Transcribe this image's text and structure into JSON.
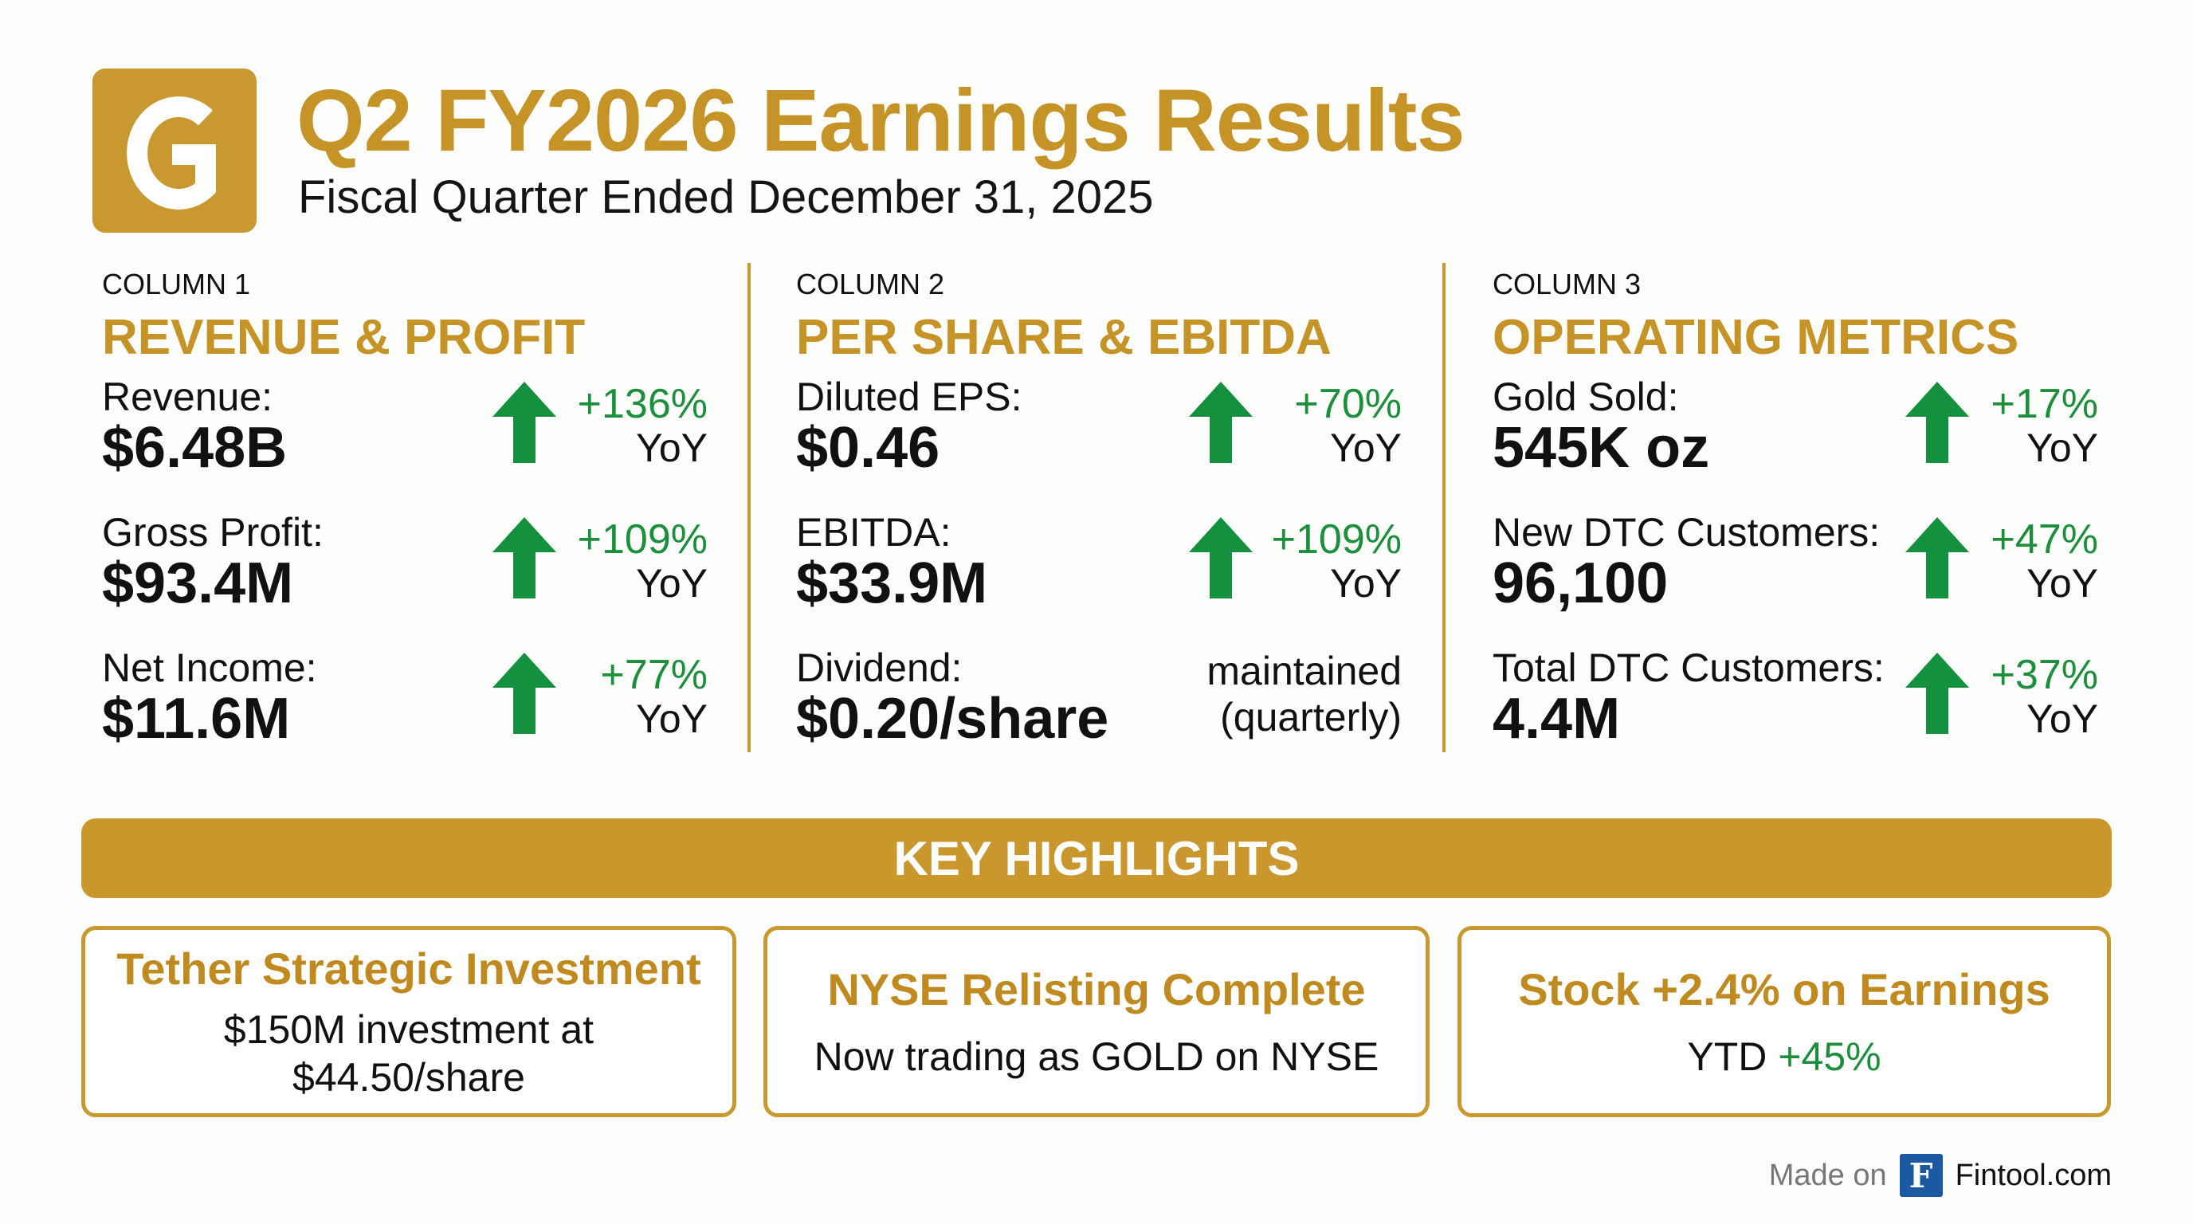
{
  "header": {
    "logo_letter": "G",
    "title": "Q2 FY2026 Earnings Results",
    "subtitle": "Fiscal Quarter Ended December 31, 2025"
  },
  "columns": [
    {
      "kicker": "COLUMN 1",
      "heading": "REVENUE & PROFIT",
      "metrics": [
        {
          "label": "Revenue:",
          "value": "$6.48B",
          "change": "+136%",
          "period": "YoY",
          "icon": "arrow-up-icon"
        },
        {
          "label": "Gross Profit:",
          "value": "$93.4M",
          "change": "+109%",
          "period": "YoY",
          "icon": "arrow-up-icon"
        },
        {
          "label": "Net Income:",
          "value": "$11.6M",
          "change": "+77%",
          "period": "YoY",
          "icon": "arrow-up-icon"
        }
      ]
    },
    {
      "kicker": "COLUMN 2",
      "heading": "PER SHARE & EBITDA",
      "metrics": [
        {
          "label": "Diluted EPS:",
          "value": "$0.46",
          "change": "+70%",
          "period": "YoY",
          "icon": "arrow-up-icon"
        },
        {
          "label": "EBITDA:",
          "value": "$33.9M",
          "change": "+109%",
          "period": "YoY",
          "icon": "arrow-up-icon"
        },
        {
          "label": "Dividend:",
          "value": "$0.20/share",
          "note1": "maintained",
          "note2": "(quarterly)"
        }
      ]
    },
    {
      "kicker": "COLUMN 3",
      "heading": "OPERATING METRICS",
      "metrics": [
        {
          "label": "Gold Sold:",
          "value": "545K oz",
          "change": "+17%",
          "period": "YoY",
          "icon": "arrow-up-icon"
        },
        {
          "label": "New DTC Customers:",
          "value": "96,100",
          "change": "+47%",
          "period": "YoY",
          "icon": "arrow-up-icon"
        },
        {
          "label": "Total DTC Customers:",
          "value": "4.4M",
          "change": "+37%",
          "period": "YoY",
          "icon": "arrow-up-icon"
        }
      ]
    }
  ],
  "highlights": {
    "title": "KEY HIGHLIGHTS",
    "items": [
      {
        "title": "Tether Strategic Investment",
        "body1": "$150M investment at",
        "body2": "$44.50/share"
      },
      {
        "title": "NYSE Relisting Complete",
        "body1": "Now trading as GOLD on NYSE"
      },
      {
        "title": "Stock +2.4% on Earnings",
        "body_prefix": "YTD ",
        "body_green": "+45%"
      }
    ]
  },
  "footer": {
    "made_on": "Made on",
    "logo_letter": "F",
    "brand": "Fintool.com"
  },
  "colors": {
    "gold": "#C59326",
    "green": "#1B8F3C",
    "fintool_blue": "#1B5AA0"
  }
}
